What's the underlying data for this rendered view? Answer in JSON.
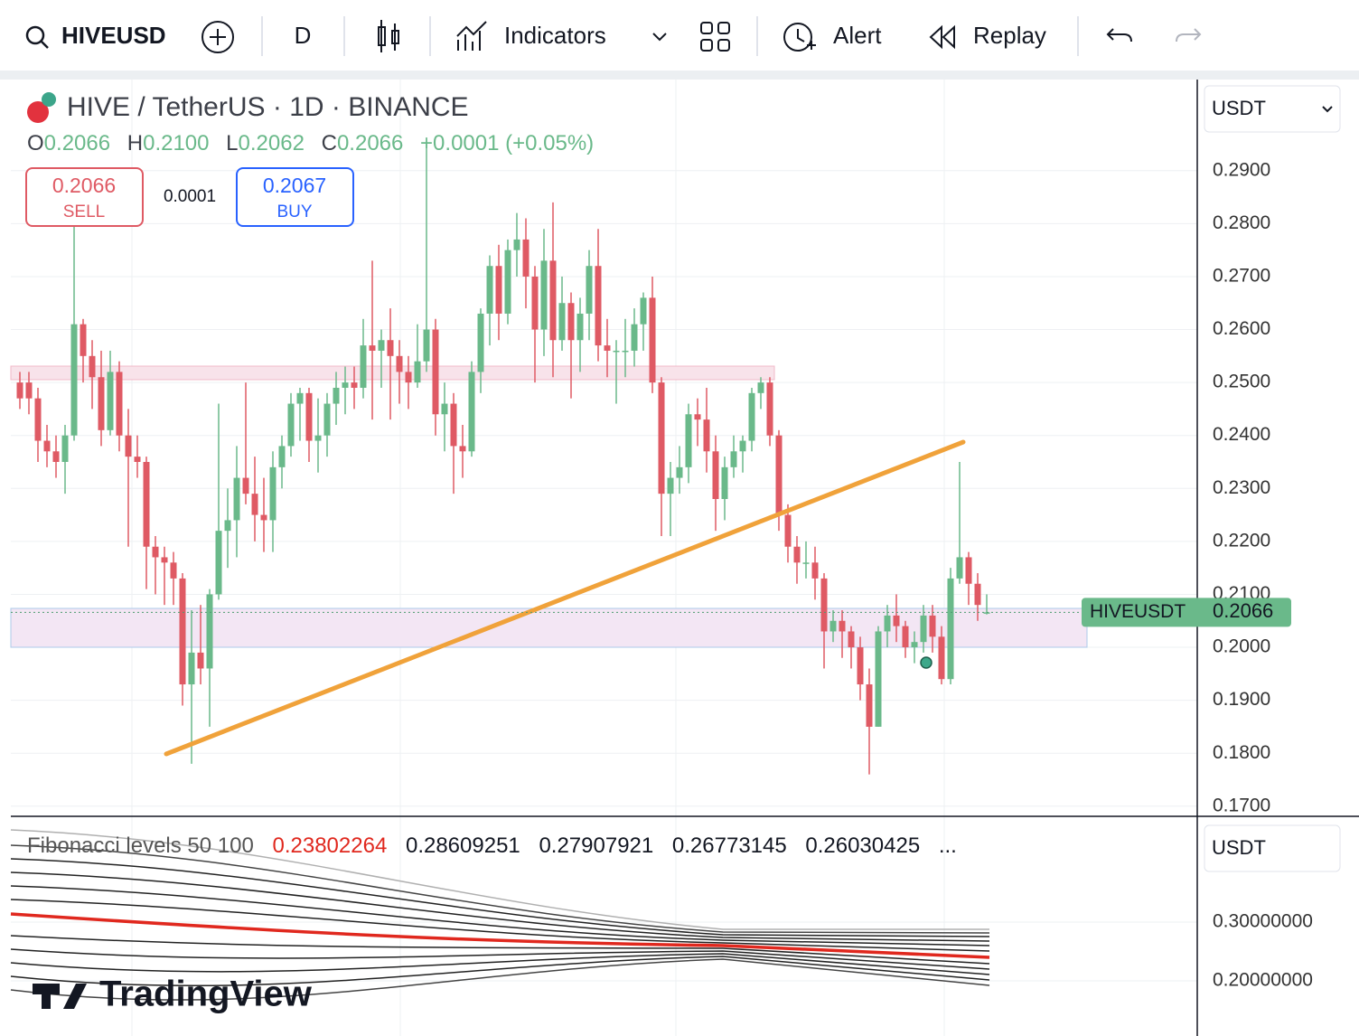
{
  "toolbar": {
    "symbol": "HIVEUSD",
    "interval": "D",
    "indicators": "Indicators",
    "alert": "Alert",
    "replay": "Replay"
  },
  "chart": {
    "type": "candlestick",
    "title": "HIVE / TetherUS · 1D · BINANCE",
    "legend": {
      "o_label": "O",
      "o": "0.2066",
      "h_label": "H",
      "h": "0.2100",
      "l_label": "L",
      "l": "0.2062",
      "c_label": "C",
      "c": "0.2066",
      "change": "+0.0001 (+0.05%)"
    },
    "sell": {
      "price": "0.2066",
      "label": "SELL"
    },
    "spread": "0.0001",
    "buy": {
      "price": "0.2067",
      "label": "BUY"
    },
    "currency": "USDT",
    "up_color": "#6ab98a",
    "down_color": "#df5a64",
    "ylim": [
      0.1686,
      0.3072
    ],
    "yticks": [
      {
        "value": 0.17,
        "label": "0.1700"
      },
      {
        "value": 0.18,
        "label": "0.1800"
      },
      {
        "value": 0.19,
        "label": "0.1900"
      },
      {
        "value": 0.2,
        "label": "0.2000"
      },
      {
        "value": 0.21,
        "label": "0.2100"
      },
      {
        "value": 0.22,
        "label": "0.2200"
      },
      {
        "value": 0.23,
        "label": "0.2300"
      },
      {
        "value": 0.24,
        "label": "0.2400"
      },
      {
        "value": 0.25,
        "label": "0.2500"
      },
      {
        "value": 0.26,
        "label": "0.2600"
      },
      {
        "value": 0.27,
        "label": "0.2700"
      },
      {
        "value": 0.28,
        "label": "0.2800"
      },
      {
        "value": 0.29,
        "label": "0.2900"
      }
    ],
    "last_price": {
      "symbol": "HIVEUSDT",
      "value": 0.2066,
      "label": "0.2066"
    },
    "candles": [
      [
        0.25,
        0.252,
        0.245,
        0.247
      ],
      [
        0.25,
        0.252,
        0.244,
        0.247
      ],
      [
        0.247,
        0.249,
        0.235,
        0.239
      ],
      [
        0.239,
        0.242,
        0.234,
        0.237
      ],
      [
        0.237,
        0.24,
        0.232,
        0.235
      ],
      [
        0.235,
        0.242,
        0.229,
        0.24
      ],
      [
        0.24,
        0.28,
        0.239,
        0.261
      ],
      [
        0.261,
        0.262,
        0.25,
        0.255
      ],
      [
        0.255,
        0.258,
        0.245,
        0.251
      ],
      [
        0.251,
        0.256,
        0.238,
        0.241
      ],
      [
        0.241,
        0.256,
        0.24,
        0.252
      ],
      [
        0.252,
        0.254,
        0.237,
        0.24
      ],
      [
        0.24,
        0.245,
        0.219,
        0.236
      ],
      [
        0.236,
        0.24,
        0.232,
        0.235
      ],
      [
        0.235,
        0.236,
        0.211,
        0.219
      ],
      [
        0.219,
        0.221,
        0.21,
        0.217
      ],
      [
        0.217,
        0.219,
        0.208,
        0.216
      ],
      [
        0.216,
        0.218,
        0.208,
        0.213
      ],
      [
        0.213,
        0.214,
        0.189,
        0.193
      ],
      [
        0.193,
        0.207,
        0.178,
        0.199
      ],
      [
        0.199,
        0.208,
        0.193,
        0.196
      ],
      [
        0.196,
        0.211,
        0.185,
        0.21
      ],
      [
        0.21,
        0.246,
        0.209,
        0.222
      ],
      [
        0.222,
        0.23,
        0.215,
        0.224
      ],
      [
        0.224,
        0.238,
        0.217,
        0.232
      ],
      [
        0.232,
        0.25,
        0.227,
        0.229
      ],
      [
        0.229,
        0.236,
        0.22,
        0.225
      ],
      [
        0.225,
        0.232,
        0.218,
        0.224
      ],
      [
        0.224,
        0.237,
        0.218,
        0.234
      ],
      [
        0.234,
        0.24,
        0.23,
        0.238
      ],
      [
        0.238,
        0.248,
        0.236,
        0.246
      ],
      [
        0.246,
        0.249,
        0.239,
        0.248
      ],
      [
        0.248,
        0.249,
        0.235,
        0.239
      ],
      [
        0.239,
        0.247,
        0.233,
        0.24
      ],
      [
        0.24,
        0.248,
        0.236,
        0.246
      ],
      [
        0.246,
        0.252,
        0.242,
        0.249
      ],
      [
        0.249,
        0.253,
        0.244,
        0.25
      ],
      [
        0.25,
        0.253,
        0.245,
        0.249
      ],
      [
        0.249,
        0.262,
        0.247,
        0.257
      ],
      [
        0.257,
        0.273,
        0.243,
        0.256
      ],
      [
        0.256,
        0.26,
        0.249,
        0.258
      ],
      [
        0.258,
        0.264,
        0.243,
        0.255
      ],
      [
        0.255,
        0.258,
        0.246,
        0.252
      ],
      [
        0.252,
        0.255,
        0.245,
        0.25
      ],
      [
        0.25,
        0.261,
        0.249,
        0.254
      ],
      [
        0.254,
        0.295,
        0.252,
        0.26
      ],
      [
        0.26,
        0.262,
        0.24,
        0.244
      ],
      [
        0.244,
        0.25,
        0.237,
        0.246
      ],
      [
        0.246,
        0.248,
        0.229,
        0.238
      ],
      [
        0.238,
        0.242,
        0.232,
        0.237
      ],
      [
        0.237,
        0.254,
        0.236,
        0.252
      ],
      [
        0.252,
        0.264,
        0.248,
        0.263
      ],
      [
        0.263,
        0.274,
        0.257,
        0.272
      ],
      [
        0.272,
        0.276,
        0.258,
        0.263
      ],
      [
        0.263,
        0.277,
        0.261,
        0.275
      ],
      [
        0.275,
        0.282,
        0.27,
        0.277
      ],
      [
        0.277,
        0.281,
        0.264,
        0.27
      ],
      [
        0.27,
        0.272,
        0.25,
        0.26
      ],
      [
        0.26,
        0.279,
        0.255,
        0.273
      ],
      [
        0.273,
        0.284,
        0.251,
        0.258
      ],
      [
        0.258,
        0.27,
        0.256,
        0.265
      ],
      [
        0.265,
        0.267,
        0.247,
        0.258
      ],
      [
        0.258,
        0.266,
        0.252,
        0.263
      ],
      [
        0.263,
        0.275,
        0.258,
        0.272
      ],
      [
        0.272,
        0.279,
        0.254,
        0.257
      ],
      [
        0.257,
        0.262,
        0.251,
        0.256
      ],
      [
        0.256,
        0.258,
        0.246,
        0.256
      ],
      [
        0.256,
        0.262,
        0.251,
        0.256
      ],
      [
        0.256,
        0.264,
        0.253,
        0.261
      ],
      [
        0.261,
        0.267,
        0.256,
        0.266
      ],
      [
        0.266,
        0.27,
        0.248,
        0.25
      ],
      [
        0.25,
        0.251,
        0.221,
        0.229
      ],
      [
        0.229,
        0.235,
        0.221,
        0.232
      ],
      [
        0.232,
        0.238,
        0.229,
        0.234
      ],
      [
        0.234,
        0.246,
        0.231,
        0.244
      ],
      [
        0.244,
        0.247,
        0.238,
        0.243
      ],
      [
        0.243,
        0.249,
        0.233,
        0.237
      ],
      [
        0.237,
        0.24,
        0.222,
        0.228
      ],
      [
        0.228,
        0.236,
        0.224,
        0.234
      ],
      [
        0.234,
        0.24,
        0.232,
        0.237
      ],
      [
        0.237,
        0.24,
        0.233,
        0.239
      ],
      [
        0.239,
        0.249,
        0.237,
        0.248
      ],
      [
        0.248,
        0.251,
        0.245,
        0.25
      ],
      [
        0.25,
        0.251,
        0.238,
        0.24
      ],
      [
        0.24,
        0.241,
        0.222,
        0.225
      ],
      [
        0.225,
        0.227,
        0.216,
        0.219
      ],
      [
        0.219,
        0.221,
        0.212,
        0.216
      ],
      [
        0.216,
        0.22,
        0.213,
        0.216
      ],
      [
        0.216,
        0.219,
        0.209,
        0.213
      ],
      [
        0.213,
        0.214,
        0.196,
        0.203
      ],
      [
        0.203,
        0.207,
        0.201,
        0.205
      ],
      [
        0.205,
        0.207,
        0.198,
        0.203
      ],
      [
        0.203,
        0.204,
        0.196,
        0.2
      ],
      [
        0.2,
        0.202,
        0.19,
        0.193
      ],
      [
        0.193,
        0.196,
        0.176,
        0.185
      ],
      [
        0.185,
        0.204,
        0.185,
        0.203
      ],
      [
        0.203,
        0.208,
        0.2,
        0.206
      ],
      [
        0.206,
        0.21,
        0.201,
        0.204
      ],
      [
        0.204,
        0.205,
        0.198,
        0.2
      ],
      [
        0.2,
        0.203,
        0.197,
        0.201
      ],
      [
        0.201,
        0.208,
        0.199,
        0.206
      ],
      [
        0.206,
        0.208,
        0.199,
        0.202
      ],
      [
        0.202,
        0.204,
        0.193,
        0.194
      ],
      [
        0.194,
        0.215,
        0.193,
        0.213
      ],
      [
        0.213,
        0.235,
        0.212,
        0.217
      ],
      [
        0.217,
        0.218,
        0.208,
        0.212
      ],
      [
        0.212,
        0.214,
        0.205,
        0.208
      ],
      [
        0.2066,
        0.21,
        0.2062,
        0.2066
      ]
    ]
  },
  "indicator": {
    "name": "Fibonacci levels 50 100",
    "values": [
      "0.23802264",
      "0.28609251",
      "0.27907921",
      "0.26773145",
      "0.26030425"
    ],
    "more": "...",
    "currency": "USDT",
    "ylim": [
      0.1062,
      0.4769
    ],
    "yticks": [
      {
        "value": 0.2,
        "label": "0.20000000"
      },
      {
        "value": 0.3,
        "label": "0.30000000"
      }
    ]
  },
  "brand": "TradingView"
}
